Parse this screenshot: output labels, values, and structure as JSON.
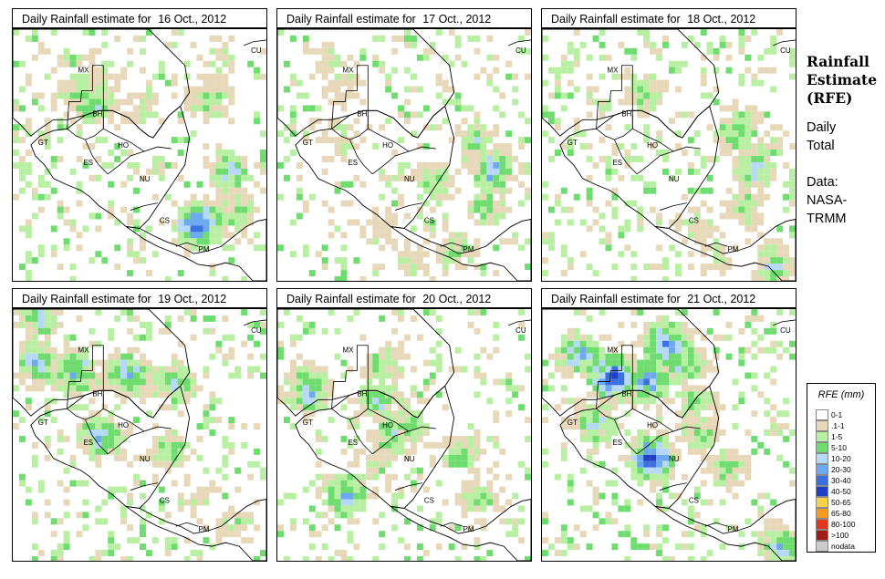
{
  "figure": {
    "title_lines": [
      "Rainfall",
      "Estimate",
      "(RFE)"
    ],
    "subtitle_lines": [
      "Daily",
      "Total"
    ],
    "source_lines": [
      "Data:",
      "NASA-",
      "TRMM"
    ]
  },
  "panels": [
    {
      "prefix": "Daily Rainfall estimate for",
      "date": "16 Oct., 2012",
      "hotspots": [
        [
          0.1,
          0.81,
          "c3"
        ],
        [
          0.25,
          0.25,
          "c4"
        ],
        [
          0.3,
          0.32,
          "c5"
        ],
        [
          0.13,
          0.24,
          "c3"
        ],
        [
          0.18,
          0.35,
          "c3"
        ],
        [
          0.3,
          0.52,
          "c3"
        ],
        [
          0.28,
          0.78,
          "c4"
        ],
        [
          0.56,
          0.86,
          "c5"
        ],
        [
          0.77,
          0.73,
          "c8"
        ],
        [
          0.72,
          0.88,
          "c4"
        ]
      ]
    },
    {
      "prefix": "Daily Rainfall estimate for",
      "date": "17 Oct., 2012",
      "hotspots": [
        [
          0.44,
          0.25,
          "c3"
        ],
        [
          0.23,
          0.25,
          "c3"
        ],
        [
          0.13,
          0.2,
          "c3"
        ],
        [
          0.44,
          0.78,
          "c4"
        ],
        [
          0.56,
          0.85,
          "c6"
        ],
        [
          0.62,
          0.62,
          "c4"
        ],
        [
          0.7,
          0.82,
          "c4"
        ],
        [
          0.88,
          0.7,
          "c4"
        ],
        [
          0.92,
          0.55,
          "c3"
        ],
        [
          0.8,
          0.4,
          "c3"
        ]
      ]
    },
    {
      "prefix": "Daily Rainfall estimate for",
      "date": "18 Oct., 2012",
      "hotspots": [
        [
          0.48,
          0.9,
          "c3"
        ],
        [
          0.25,
          0.4,
          "c4"
        ],
        [
          0.4,
          0.77,
          "c5"
        ],
        [
          0.55,
          0.84,
          "c5"
        ],
        [
          0.7,
          0.8,
          "c4"
        ],
        [
          0.9,
          0.68,
          "c3"
        ],
        [
          0.95,
          0.92,
          "c5"
        ],
        [
          0.78,
          0.6,
          "c3"
        ]
      ]
    },
    {
      "prefix": "Daily Rainfall estimate for",
      "date": "19 Oct., 2012",
      "hotspots": [
        [
          0.04,
          0.1,
          "c5"
        ],
        [
          0.25,
          0.25,
          "c6"
        ],
        [
          0.21,
          0.1,
          "c6"
        ],
        [
          0.26,
          0.45,
          "c6"
        ],
        [
          0.5,
          0.35,
          "c6"
        ],
        [
          0.3,
          0.64,
          "c5"
        ],
        [
          0.55,
          0.62,
          "c4"
        ],
        [
          0.75,
          0.72,
          "c3"
        ],
        [
          0.85,
          0.88,
          "c3"
        ]
      ]
    },
    {
      "prefix": "Daily Rainfall estimate for",
      "date": "20 Oct., 2012",
      "hotspots": [
        [
          0.32,
          0.12,
          "c6"
        ],
        [
          0.74,
          0.28,
          "c6"
        ],
        [
          0.74,
          0.8,
          "c4"
        ],
        [
          0.46,
          0.52,
          "c4"
        ],
        [
          0.22,
          0.41,
          "c4"
        ],
        [
          0.36,
          0.4,
          "c5"
        ],
        [
          0.5,
          0.45,
          "c5"
        ],
        [
          0.58,
          0.72,
          "c4"
        ],
        [
          0.62,
          0.4,
          "c3"
        ]
      ]
    },
    {
      "prefix": "Daily Rainfall estimate for",
      "date": "21 Oct., 2012",
      "hotspots": [
        [
          0.14,
          0.49,
          "c7"
        ],
        [
          0.28,
          0.42,
          "c7"
        ],
        [
          0.18,
          0.15,
          "c6"
        ],
        [
          0.27,
          0.28,
          "c8"
        ],
        [
          0.59,
          0.43,
          "c8"
        ],
        [
          0.36,
          0.61,
          "c4"
        ],
        [
          0.49,
          0.62,
          "c4"
        ],
        [
          0.63,
          0.73,
          "c4"
        ],
        [
          0.95,
          0.95,
          "c6"
        ],
        [
          0.45,
          0.21,
          "c5"
        ],
        [
          0.22,
          0.55,
          "c5"
        ]
      ]
    }
  ],
  "map_labels": [
    "MX",
    "BH",
    "GT",
    "HO",
    "ES",
    "NU",
    "CS",
    "PM",
    "CU"
  ],
  "legend": {
    "title": "RFE (mm)",
    "items": [
      {
        "label": "0-1",
        "color": "#ffffff"
      },
      {
        "label": ".1-1",
        "color": "#e6d8b8"
      },
      {
        "label": "1-5",
        "color": "#b8efa2"
      },
      {
        "label": "5-10",
        "color": "#6fdc6f"
      },
      {
        "label": "10-20",
        "color": "#b5d9f7"
      },
      {
        "label": "20-30",
        "color": "#6ca9ef"
      },
      {
        "label": "30-40",
        "color": "#3c6fe0"
      },
      {
        "label": "40-50",
        "color": "#1f3fc4"
      },
      {
        "label": "50-65",
        "color": "#f6d24a"
      },
      {
        "label": "65-80",
        "color": "#f59a22"
      },
      {
        "label": "80-100",
        "color": "#e03a1e"
      },
      {
        "label": ">100",
        "color": "#a11b14"
      },
      {
        "label": "nodata",
        "color": "#cccccc"
      }
    ]
  }
}
